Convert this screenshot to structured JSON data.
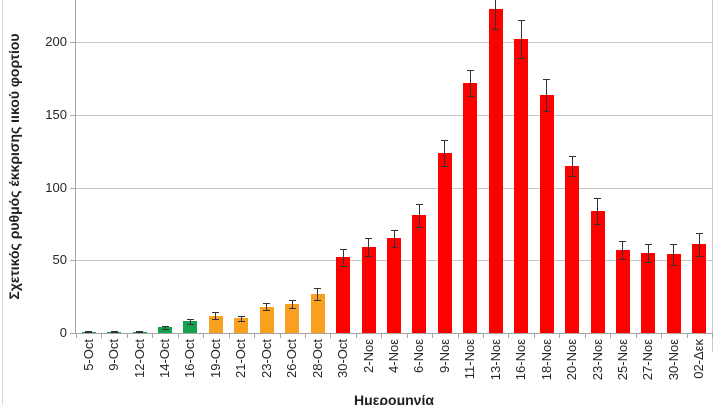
{
  "chart_data": {
    "type": "bar",
    "title": "",
    "xlabel": "Ημερομηνία",
    "ylabel": "Σχετικός ρυθμός έκκρισης ιικού φορτίου",
    "y_ticks": [
      0,
      50,
      100,
      150,
      200
    ],
    "ylim": [
      0,
      229
    ],
    "grid": true,
    "legend": null,
    "error_bars": true,
    "categories": [
      "5-Oct",
      "9-Oct",
      "12-Oct",
      "14-Oct",
      "16-Oct",
      "19-Oct",
      "21-Oct",
      "23-Oct",
      "26-Oct",
      "28-Oct",
      "30-Oct",
      "2-Νοε",
      "4-Νοε",
      "6-Νοε",
      "9-Νοε",
      "11-Νοε",
      "13-Νοε",
      "16-Νοε",
      "18-Νοε",
      "20-Νοε",
      "23-Νοε",
      "25-Νοε",
      "27-Νοε",
      "30-Νοε",
      "02-Δεκ"
    ],
    "values": [
      1,
      1,
      1,
      4,
      8,
      12,
      10,
      18,
      20,
      27,
      52,
      59,
      65,
      81,
      124,
      172,
      223,
      202,
      164,
      115,
      84,
      57,
      55,
      54,
      61
    ],
    "errors": [
      0.5,
      0.5,
      0.5,
      1,
      1.5,
      2.5,
      2,
      2.5,
      3,
      4,
      6,
      6,
      6,
      8,
      9,
      9,
      14,
      13,
      11,
      7,
      9,
      6,
      6,
      7,
      8
    ],
    "bar_colors": [
      "#12A24E",
      "#12A24E",
      "#12A24E",
      "#12A24E",
      "#12A24E",
      "#F9A11E",
      "#F9A11E",
      "#F9A11E",
      "#F9A11E",
      "#F9A11E",
      "#FE0000",
      "#FE0000",
      "#FE0000",
      "#FE0000",
      "#FE0000",
      "#FE0000",
      "#FE0000",
      "#FE0000",
      "#FE0000",
      "#FE0000",
      "#FE0000",
      "#FE0000",
      "#FE0000",
      "#FE0000",
      "#FE0000"
    ]
  },
  "palette": {
    "green": "#12A24E",
    "orange": "#F9A11E",
    "red": "#FE0000",
    "gridline": "#C6C6C6",
    "axis_line": "#A6A6A6",
    "error_bar": "#333333",
    "tick_text": "#262626",
    "title_text": "#1F1F1F",
    "background": "#FFFFFF"
  }
}
